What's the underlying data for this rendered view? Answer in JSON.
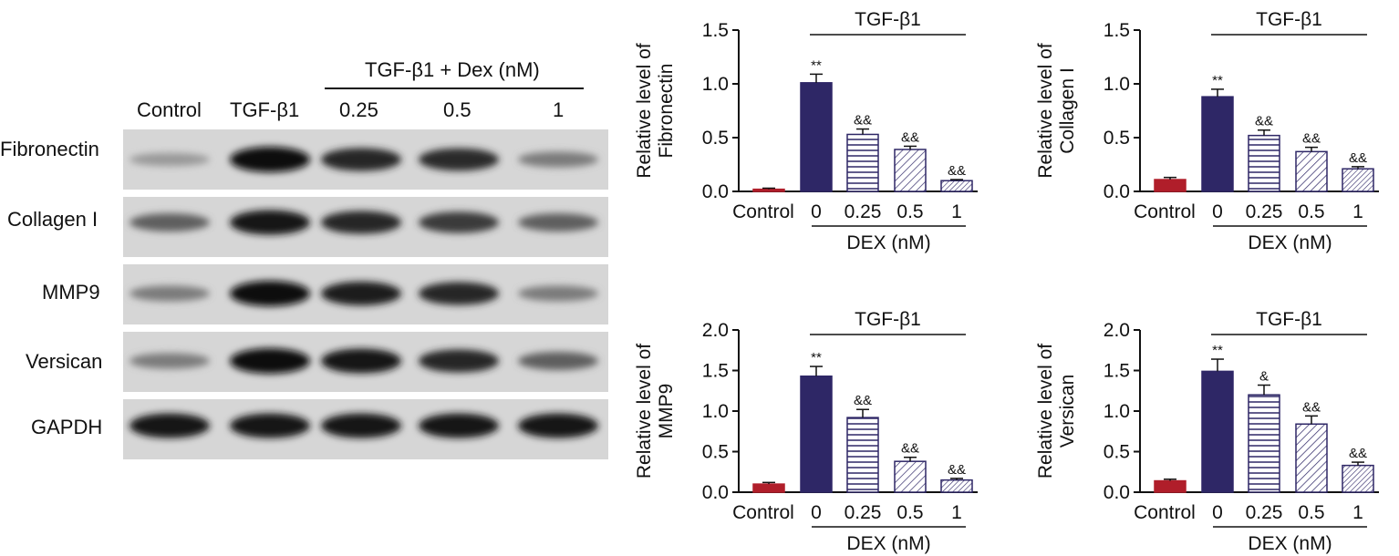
{
  "blot": {
    "group_label": "TGF-β1 + Dex (nM)",
    "lanes": [
      "Control",
      "TGF-β1",
      "0.25",
      "0.5",
      "1"
    ],
    "rows": [
      {
        "label": "Fibronectin",
        "intensity": [
          0.25,
          1.0,
          0.85,
          0.82,
          0.4
        ]
      },
      {
        "label": "Collagen I",
        "intensity": [
          0.55,
          0.95,
          0.85,
          0.75,
          0.55
        ]
      },
      {
        "label": "MMP9",
        "intensity": [
          0.4,
          1.0,
          0.9,
          0.85,
          0.4
        ]
      },
      {
        "label": "Versican",
        "intensity": [
          0.4,
          1.0,
          0.95,
          0.85,
          0.55
        ]
      },
      {
        "label": "GAPDH",
        "intensity": [
          0.95,
          0.95,
          0.95,
          0.95,
          0.95
        ]
      }
    ]
  },
  "chart_data": [
    {
      "type": "bar",
      "ylabel": [
        "Relative level of",
        "Fibronectin"
      ],
      "bracket_label": "TGF-β1",
      "xgroup_label": "DEX (nM)",
      "categories": [
        "Control",
        "0",
        "0.25",
        "0.5",
        "1"
      ],
      "values": [
        0.02,
        1.01,
        0.53,
        0.39,
        0.1
      ],
      "errors": [
        0.01,
        0.08,
        0.05,
        0.03,
        0.01
      ],
      "significance": [
        "",
        "**",
        "&&",
        "&&",
        "&&"
      ],
      "ylim": [
        0,
        1.5
      ],
      "yticks": [
        "0.0",
        "0.5",
        "1.0",
        "1.5"
      ]
    },
    {
      "type": "bar",
      "ylabel": [
        "Relative level of",
        "Collagen I"
      ],
      "bracket_label": "TGF-β1",
      "xgroup_label": "DEX (nM)",
      "categories": [
        "Control",
        "0",
        "0.25",
        "0.5",
        "1"
      ],
      "values": [
        0.11,
        0.88,
        0.52,
        0.37,
        0.21
      ],
      "errors": [
        0.02,
        0.07,
        0.05,
        0.04,
        0.02
      ],
      "significance": [
        "",
        "**",
        "&&",
        "&&",
        "&&"
      ],
      "ylim": [
        0,
        1.5
      ],
      "yticks": [
        "0.0",
        "0.5",
        "1.0",
        "1.5"
      ]
    },
    {
      "type": "bar",
      "ylabel": [
        "Relative level of",
        "MMP9"
      ],
      "bracket_label": "TGF-β1",
      "xgroup_label": "DEX (nM)",
      "categories": [
        "Control",
        "0",
        "0.25",
        "0.5",
        "1"
      ],
      "values": [
        0.1,
        1.43,
        0.92,
        0.38,
        0.15
      ],
      "errors": [
        0.02,
        0.12,
        0.1,
        0.05,
        0.02
      ],
      "significance": [
        "",
        "**",
        "&&",
        "&&",
        "&&"
      ],
      "ylim": [
        0,
        2.0
      ],
      "yticks": [
        "0.0",
        "0.5",
        "1.0",
        "1.5",
        "2.0"
      ]
    },
    {
      "type": "bar",
      "ylabel": [
        "Relative level of",
        "Versican"
      ],
      "bracket_label": "TGF-β1",
      "xgroup_label": "DEX (nM)",
      "categories": [
        "Control",
        "0",
        "0.25",
        "0.5",
        "1"
      ],
      "values": [
        0.14,
        1.49,
        1.2,
        0.84,
        0.33
      ],
      "errors": [
        0.02,
        0.15,
        0.12,
        0.1,
        0.04
      ],
      "significance": [
        "",
        "**",
        "&",
        "&&",
        "&&"
      ],
      "ylim": [
        0,
        2.0
      ],
      "yticks": [
        "0.0",
        "0.5",
        "1.0",
        "1.5",
        "2.0"
      ]
    }
  ],
  "colors": {
    "control": "#b01e2a",
    "tgf": "#2e2766",
    "outline": "#2e2766",
    "axis": "#111111"
  }
}
